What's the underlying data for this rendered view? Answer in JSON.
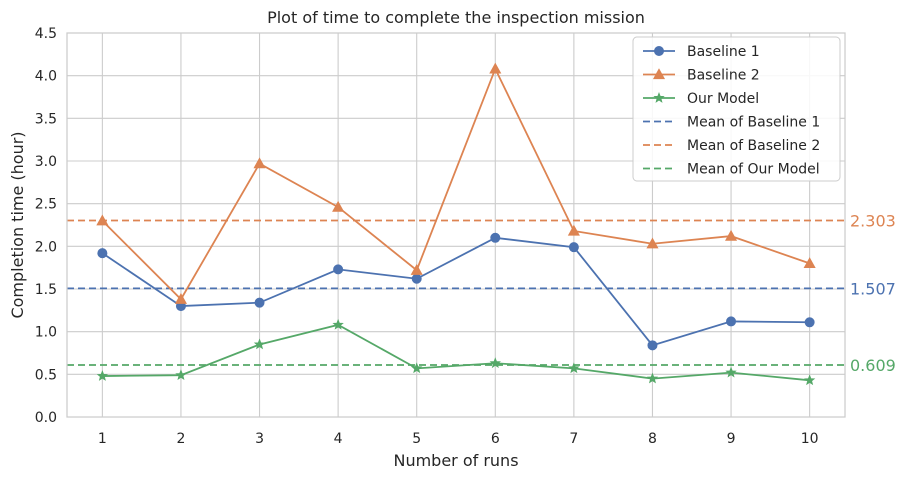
{
  "chart_data": {
    "type": "line",
    "title": "Plot of time to complete the inspection mission",
    "xlabel": "Number of runs",
    "ylabel": "Completion time (hour)",
    "xlim": [
      0.55,
      10.45
    ],
    "ylim": [
      0,
      4.5
    ],
    "x": [
      1,
      2,
      3,
      4,
      5,
      6,
      7,
      8,
      9,
      10
    ],
    "xticks": [
      "1",
      "2",
      "3",
      "4",
      "5",
      "6",
      "7",
      "8",
      "9",
      "10"
    ],
    "yticks": [
      "0.0",
      "0.5",
      "1.0",
      "1.5",
      "2.0",
      "2.5",
      "3.0",
      "3.5",
      "4.0",
      "4.5"
    ],
    "grid": true,
    "legend_position": "top-right",
    "series": [
      {
        "name": "Baseline 1",
        "color": "#4c72b0",
        "marker": "circle",
        "values": [
          1.92,
          1.3,
          1.34,
          1.73,
          1.62,
          2.1,
          1.99,
          0.84,
          1.12,
          1.11
        ]
      },
      {
        "name": "Baseline 2",
        "color": "#dd8452",
        "marker": "triangle",
        "values": [
          2.3,
          1.38,
          2.97,
          2.46,
          1.72,
          4.08,
          2.18,
          2.03,
          2.12,
          1.8
        ]
      },
      {
        "name": "Our Model",
        "color": "#55a868",
        "marker": "star",
        "values": [
          0.48,
          0.49,
          0.85,
          1.08,
          0.57,
          0.63,
          0.57,
          0.45,
          0.52,
          0.43
        ]
      }
    ],
    "means": [
      {
        "name": "Mean of Baseline 1",
        "value": 1.507,
        "label": "1.507",
        "color": "#4c72b0"
      },
      {
        "name": "Mean of Baseline 2",
        "value": 2.303,
        "label": "2.303",
        "color": "#dd8452"
      },
      {
        "name": "Mean of Our Model",
        "value": 0.609,
        "label": "0.609",
        "color": "#55a868"
      }
    ]
  }
}
